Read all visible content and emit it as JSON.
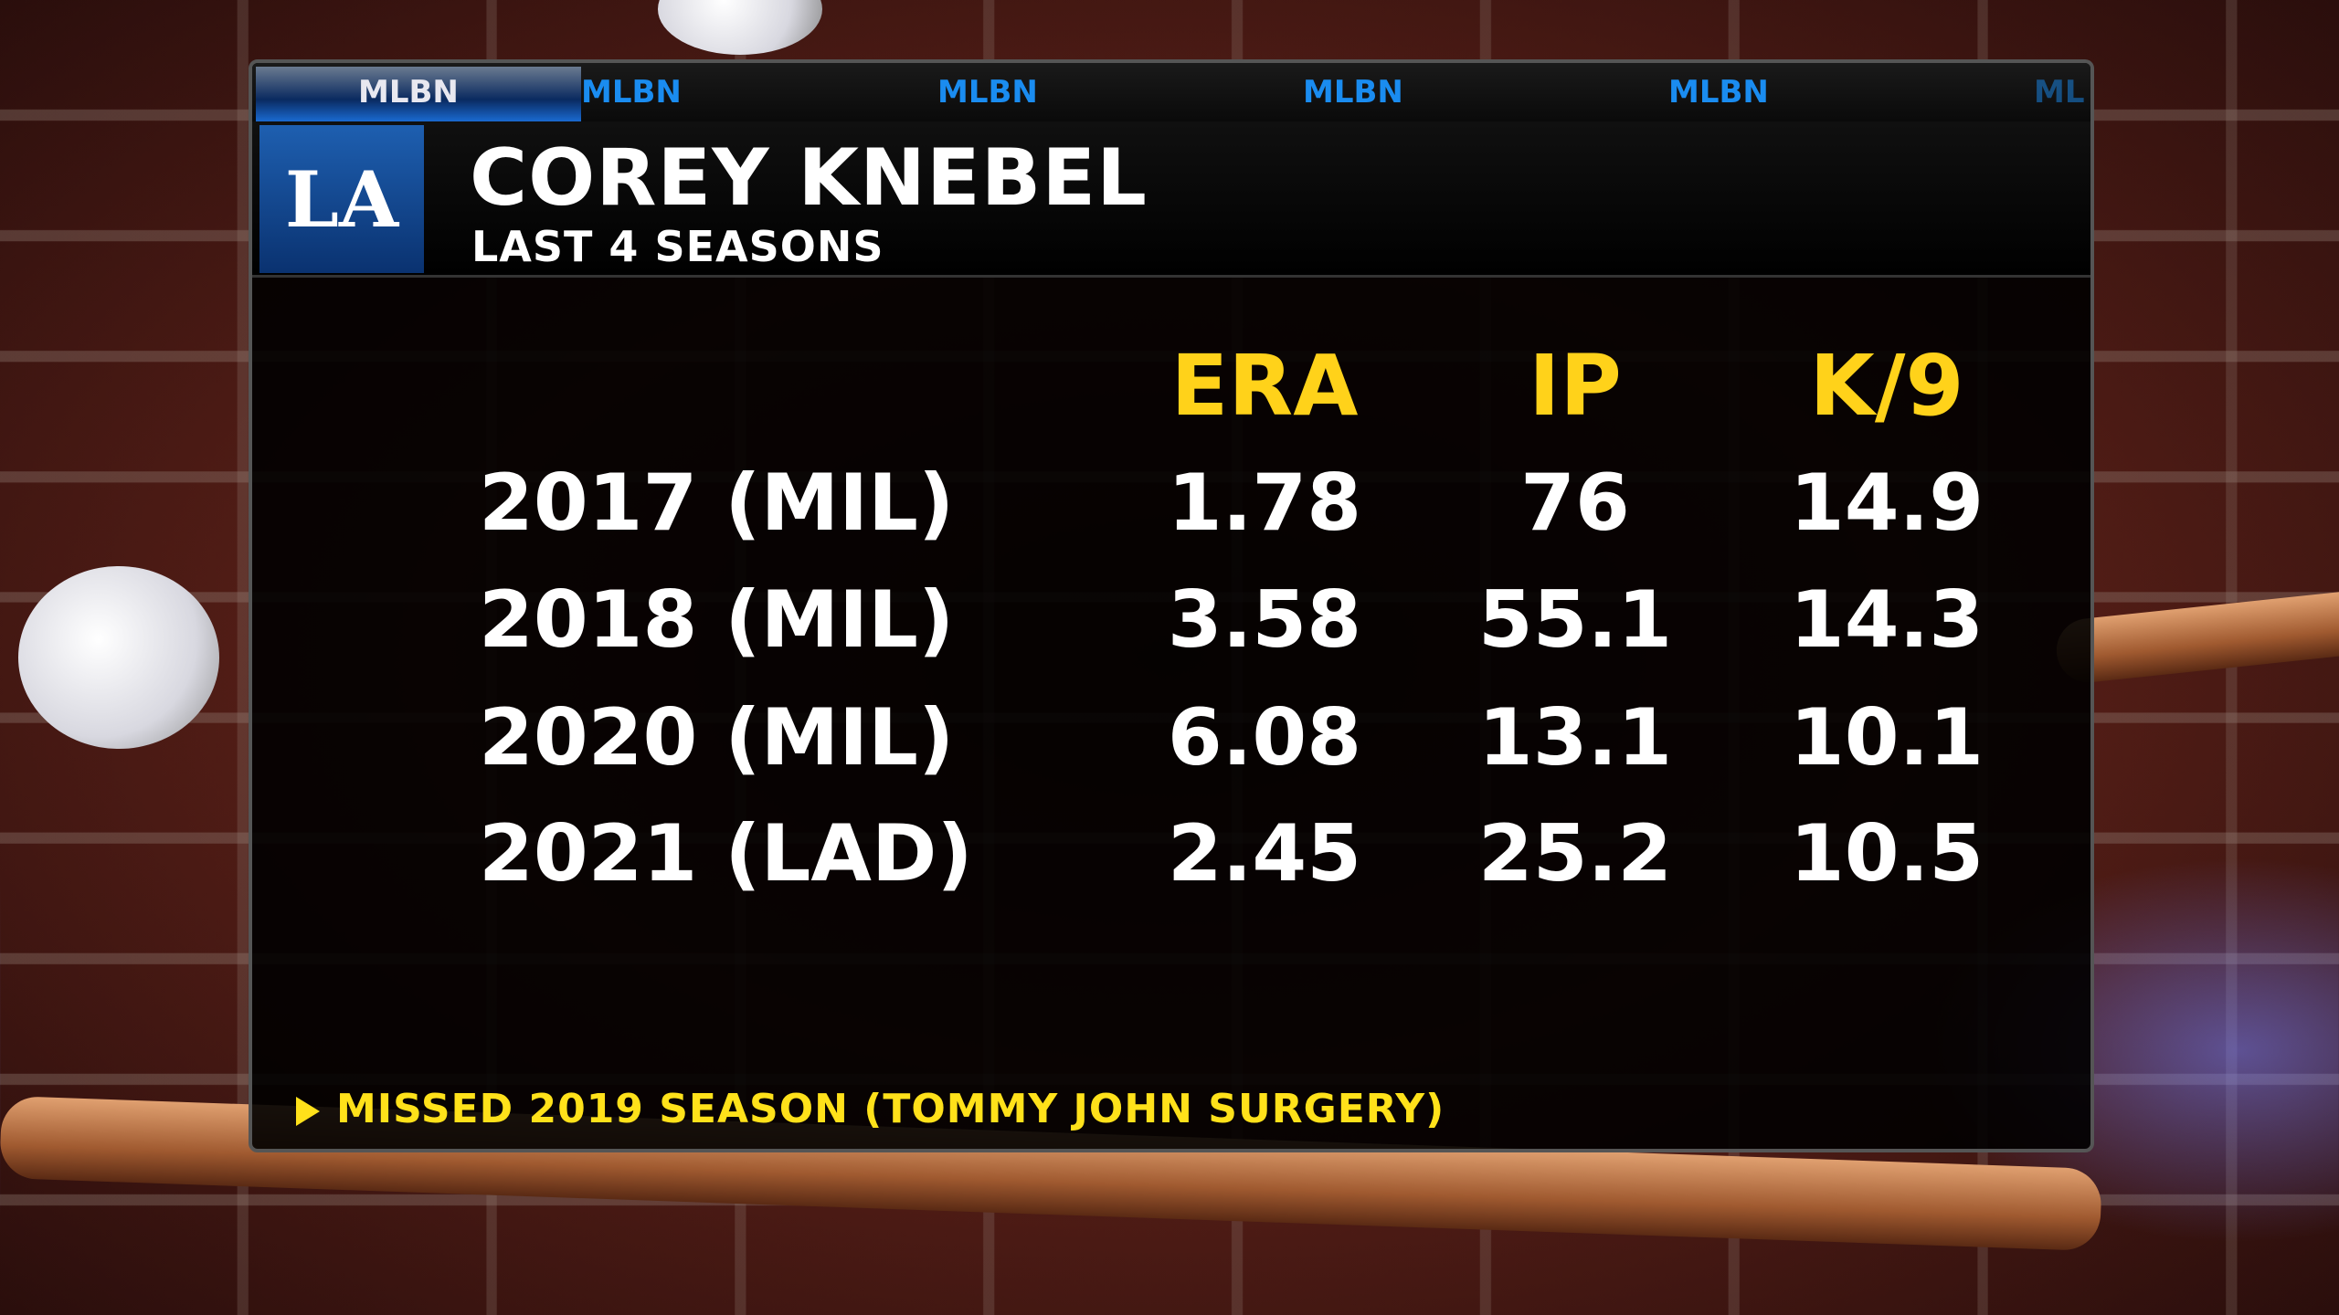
{
  "network_strip": {
    "active": "MLBN",
    "items": [
      "MLBN",
      "MLBN",
      "MLBN",
      "MLBN",
      "ML"
    ]
  },
  "header": {
    "team_logo": "LA",
    "player_name": "COREY KNEBEL",
    "subtitle": "LAST 4 SEASONS"
  },
  "table": {
    "columns": [
      "ERA",
      "IP",
      "K/9"
    ],
    "rows": [
      {
        "season": "2017 (MIL)",
        "values": [
          "1.78",
          "76",
          "14.9"
        ]
      },
      {
        "season": "2018 (MIL)",
        "values": [
          "3.58",
          "55.1",
          "14.3"
        ]
      },
      {
        "season": "2020 (MIL)",
        "values": [
          "6.08",
          "13.1",
          "10.1"
        ]
      },
      {
        "season": "2021 (LAD)",
        "values": [
          "2.45",
          "25.2",
          "10.5"
        ]
      }
    ]
  },
  "footnote": "MISSED 2019 SEASON (TOMMY JOHN SURGERY)",
  "colors": {
    "accent": "#ffd21a",
    "brand_blue": "#1a8cf0"
  }
}
